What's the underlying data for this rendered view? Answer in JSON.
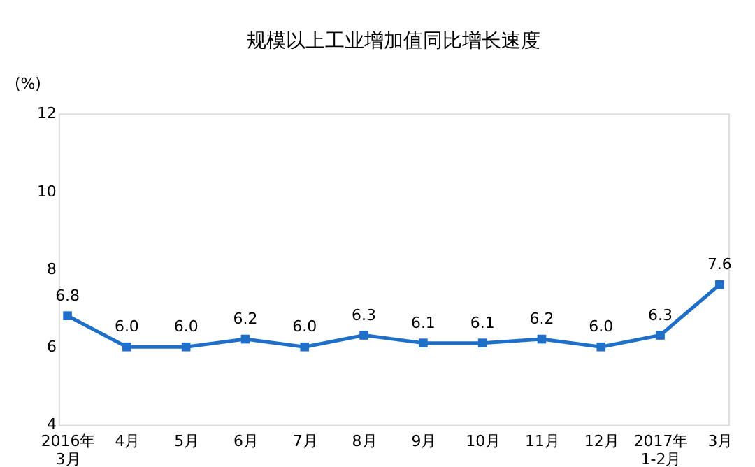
{
  "chart_data": {
    "type": "line",
    "title": "规模以上工业增加值同比增长速度",
    "ylabel": "(%)",
    "categories": [
      "2016年\n3月",
      "4月",
      "5月",
      "6月",
      "7月",
      "8月",
      "9月",
      "10月",
      "11月",
      "12月",
      "2017年\n1-2月",
      "3月"
    ],
    "series": [
      {
        "color": "#1f6fc8",
        "values": [
          6.8,
          6.0,
          6.0,
          6.2,
          6.0,
          6.3,
          6.1,
          6.1,
          6.2,
          6.0,
          6.3,
          7.6
        ],
        "value_labels": [
          "6.8",
          "6.0",
          "6.0",
          "6.2",
          "6.0",
          "6.3",
          "6.1",
          "6.1",
          "6.2",
          "6.0",
          "6.3",
          "7.6"
        ]
      }
    ],
    "ylim": [
      4,
      12
    ],
    "yticks": [
      4,
      6,
      8,
      10,
      12
    ],
    "grid": false,
    "marker": "square",
    "line_style": "solid"
  }
}
